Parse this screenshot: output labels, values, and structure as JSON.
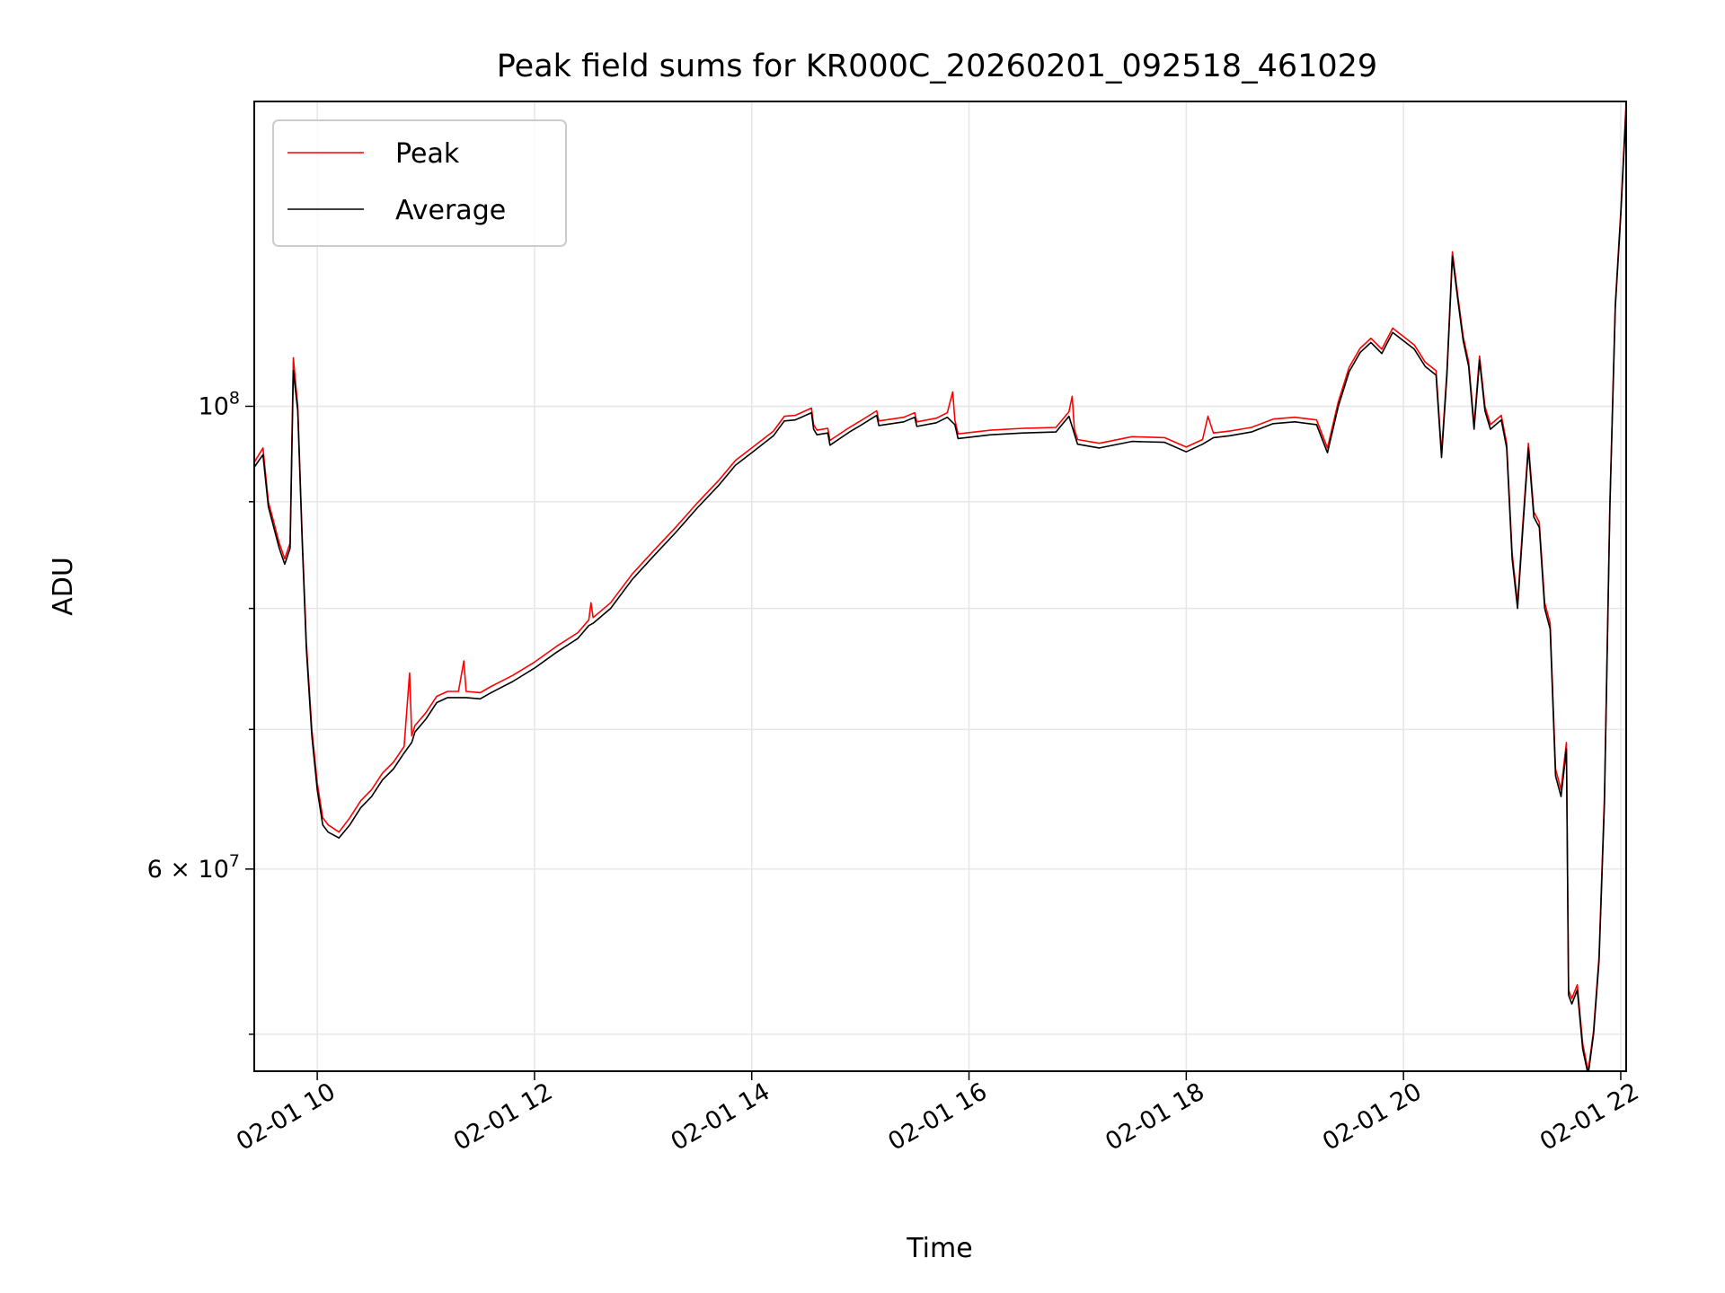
{
  "chart_data": {
    "type": "line",
    "title": "Peak field sums for KR000C_20260201_092518_461029",
    "xlabel": "Time",
    "ylabel": "ADU",
    "x_unit": "hours (clock time on 2026-02-01)",
    "xlim": [
      9.42,
      22.05
    ],
    "ylim": [
      48000000,
      140000000
    ],
    "yscale": "log",
    "grid": true,
    "legend_position": "upper left",
    "x_ticks": [
      {
        "value": 10,
        "label": "02-01 10"
      },
      {
        "value": 12,
        "label": "02-01 12"
      },
      {
        "value": 14,
        "label": "02-01 14"
      },
      {
        "value": 16,
        "label": "02-01 16"
      },
      {
        "value": 18,
        "label": "02-01 18"
      },
      {
        "value": 20,
        "label": "02-01 20"
      },
      {
        "value": 22,
        "label": "02-01 22"
      }
    ],
    "y_major_ticks": [
      {
        "value": 60000000,
        "base": "6 × 10",
        "exp": "7"
      },
      {
        "value": 100000000,
        "base": "10",
        "exp": "8"
      }
    ],
    "y_minor_ticks": [
      50000000,
      70000000,
      80000000,
      90000000
    ],
    "series": [
      {
        "name": "Peak",
        "color": "#ff0000",
        "points": [
          [
            9.42,
            94000000
          ],
          [
            9.5,
            95500000
          ],
          [
            9.55,
            90000000
          ],
          [
            9.65,
            86000000
          ],
          [
            9.7,
            84500000
          ],
          [
            9.75,
            86000000
          ],
          [
            9.78,
            105500000
          ],
          [
            9.82,
            100000000
          ],
          [
            9.86,
            87000000
          ],
          [
            9.9,
            77000000
          ],
          [
            9.95,
            70000000
          ],
          [
            10.0,
            66000000
          ],
          [
            10.05,
            63500000
          ],
          [
            10.1,
            63000000
          ],
          [
            10.2,
            62500000
          ],
          [
            10.3,
            63500000
          ],
          [
            10.4,
            64700000
          ],
          [
            10.5,
            65500000
          ],
          [
            10.6,
            66700000
          ],
          [
            10.7,
            67500000
          ],
          [
            10.8,
            68700000
          ],
          [
            10.85,
            74500000
          ],
          [
            10.87,
            69500000
          ],
          [
            10.9,
            70300000
          ],
          [
            11.0,
            71300000
          ],
          [
            11.1,
            72600000
          ],
          [
            11.2,
            73000000
          ],
          [
            11.3,
            73000000
          ],
          [
            11.35,
            75500000
          ],
          [
            11.37,
            73000000
          ],
          [
            11.5,
            72900000
          ],
          [
            11.6,
            73400000
          ],
          [
            11.8,
            74300000
          ],
          [
            12.0,
            75400000
          ],
          [
            12.2,
            76700000
          ],
          [
            12.4,
            77900000
          ],
          [
            12.5,
            79000000
          ],
          [
            12.52,
            80500000
          ],
          [
            12.54,
            79200000
          ],
          [
            12.7,
            80500000
          ],
          [
            12.9,
            83100000
          ],
          [
            13.1,
            85300000
          ],
          [
            13.3,
            87500000
          ],
          [
            13.5,
            89900000
          ],
          [
            13.7,
            92200000
          ],
          [
            13.85,
            94200000
          ],
          [
            14.0,
            95500000
          ],
          [
            14.2,
            97300000
          ],
          [
            14.3,
            98900000
          ],
          [
            14.4,
            99000000
          ],
          [
            14.55,
            99800000
          ],
          [
            14.57,
            98000000
          ],
          [
            14.6,
            97400000
          ],
          [
            14.7,
            97600000
          ],
          [
            14.72,
            96300000
          ],
          [
            14.9,
            97700000
          ],
          [
            15.0,
            98400000
          ],
          [
            15.15,
            99500000
          ],
          [
            15.17,
            98400000
          ],
          [
            15.4,
            98800000
          ],
          [
            15.5,
            99300000
          ],
          [
            15.52,
            98300000
          ],
          [
            15.7,
            98700000
          ],
          [
            15.8,
            99300000
          ],
          [
            15.85,
            101600000
          ],
          [
            15.87,
            98500000
          ],
          [
            15.9,
            97000000
          ],
          [
            16.2,
            97400000
          ],
          [
            16.5,
            97600000
          ],
          [
            16.8,
            97700000
          ],
          [
            16.92,
            99400000
          ],
          [
            16.95,
            101100000
          ],
          [
            16.97,
            97500000
          ],
          [
            17.0,
            96400000
          ],
          [
            17.2,
            96000000
          ],
          [
            17.5,
            96700000
          ],
          [
            17.8,
            96600000
          ],
          [
            18.0,
            95600000
          ],
          [
            18.15,
            96400000
          ],
          [
            18.2,
            98900000
          ],
          [
            18.25,
            97100000
          ],
          [
            18.4,
            97300000
          ],
          [
            18.6,
            97700000
          ],
          [
            18.8,
            98600000
          ],
          [
            19.0,
            98800000
          ],
          [
            19.2,
            98500000
          ],
          [
            19.3,
            95500000
          ],
          [
            19.4,
            100500000
          ],
          [
            19.5,
            104400000
          ],
          [
            19.6,
            106600000
          ],
          [
            19.7,
            107800000
          ],
          [
            19.8,
            106500000
          ],
          [
            19.9,
            109000000
          ],
          [
            20.0,
            108000000
          ],
          [
            20.1,
            107000000
          ],
          [
            20.2,
            105000000
          ],
          [
            20.3,
            104000000
          ],
          [
            20.35,
            95000000
          ],
          [
            20.4,
            104000000
          ],
          [
            20.45,
            118600000
          ],
          [
            20.5,
            113000000
          ],
          [
            20.55,
            108000000
          ],
          [
            20.6,
            105000000
          ],
          [
            20.65,
            98000000
          ],
          [
            20.7,
            105700000
          ],
          [
            20.75,
            100000000
          ],
          [
            20.8,
            98000000
          ],
          [
            20.9,
            99000000
          ],
          [
            20.95,
            96000000
          ],
          [
            21.0,
            85000000
          ],
          [
            21.05,
            80500000
          ],
          [
            21.1,
            88000000
          ],
          [
            21.15,
            96000000
          ],
          [
            21.2,
            89000000
          ],
          [
            21.25,
            88000000
          ],
          [
            21.3,
            80500000
          ],
          [
            21.35,
            78700000
          ],
          [
            21.4,
            67000000
          ],
          [
            21.45,
            65500000
          ],
          [
            21.5,
            69000000
          ],
          [
            21.52,
            52500000
          ],
          [
            21.55,
            52000000
          ],
          [
            21.6,
            52800000
          ],
          [
            21.65,
            49500000
          ],
          [
            21.7,
            48000000
          ],
          [
            21.75,
            50200000
          ],
          [
            21.8,
            54500000
          ],
          [
            21.85,
            65000000
          ],
          [
            21.9,
            90000000
          ],
          [
            21.95,
            112000000
          ],
          [
            22.0,
            124000000
          ],
          [
            22.05,
            140000000
          ]
        ]
      },
      {
        "name": "Average",
        "color": "#000000",
        "points": [
          [
            9.42,
            93500000
          ],
          [
            9.5,
            94800000
          ],
          [
            9.55,
            89500000
          ],
          [
            9.65,
            85500000
          ],
          [
            9.7,
            84000000
          ],
          [
            9.75,
            85500000
          ],
          [
            9.78,
            104000000
          ],
          [
            9.82,
            99500000
          ],
          [
            9.86,
            86500000
          ],
          [
            9.9,
            76500000
          ],
          [
            9.95,
            69500000
          ],
          [
            10.0,
            65500000
          ],
          [
            10.05,
            63000000
          ],
          [
            10.1,
            62500000
          ],
          [
            10.2,
            62100000
          ],
          [
            10.3,
            63000000
          ],
          [
            10.4,
            64200000
          ],
          [
            10.5,
            65000000
          ],
          [
            10.6,
            66200000
          ],
          [
            10.7,
            67000000
          ],
          [
            10.8,
            68200000
          ],
          [
            10.87,
            69000000
          ],
          [
            10.9,
            69800000
          ],
          [
            11.0,
            70800000
          ],
          [
            11.1,
            72100000
          ],
          [
            11.2,
            72500000
          ],
          [
            11.3,
            72500000
          ],
          [
            11.37,
            72500000
          ],
          [
            11.5,
            72400000
          ],
          [
            11.6,
            72900000
          ],
          [
            11.8,
            73800000
          ],
          [
            12.0,
            74900000
          ],
          [
            12.2,
            76200000
          ],
          [
            12.4,
            77400000
          ],
          [
            12.5,
            78500000
          ],
          [
            12.54,
            78700000
          ],
          [
            12.7,
            80000000
          ],
          [
            12.9,
            82600000
          ],
          [
            13.1,
            84800000
          ],
          [
            13.3,
            87000000
          ],
          [
            13.5,
            89400000
          ],
          [
            13.7,
            91700000
          ],
          [
            13.85,
            93700000
          ],
          [
            14.0,
            95000000
          ],
          [
            14.2,
            96800000
          ],
          [
            14.3,
            98400000
          ],
          [
            14.4,
            98500000
          ],
          [
            14.55,
            99300000
          ],
          [
            14.57,
            97500000
          ],
          [
            14.6,
            96900000
          ],
          [
            14.7,
            97100000
          ],
          [
            14.72,
            95800000
          ],
          [
            14.9,
            97200000
          ],
          [
            15.0,
            97900000
          ],
          [
            15.15,
            99000000
          ],
          [
            15.17,
            97900000
          ],
          [
            15.4,
            98300000
          ],
          [
            15.5,
            98800000
          ],
          [
            15.52,
            97800000
          ],
          [
            15.7,
            98200000
          ],
          [
            15.8,
            98800000
          ],
          [
            15.87,
            98000000
          ],
          [
            15.9,
            96500000
          ],
          [
            16.2,
            96900000
          ],
          [
            16.5,
            97100000
          ],
          [
            16.8,
            97200000
          ],
          [
            16.92,
            98900000
          ],
          [
            16.97,
            97000000
          ],
          [
            17.0,
            95900000
          ],
          [
            17.2,
            95500000
          ],
          [
            17.5,
            96200000
          ],
          [
            17.8,
            96100000
          ],
          [
            18.0,
            95100000
          ],
          [
            18.15,
            95900000
          ],
          [
            18.25,
            96600000
          ],
          [
            18.4,
            96800000
          ],
          [
            18.6,
            97200000
          ],
          [
            18.8,
            98100000
          ],
          [
            19.0,
            98300000
          ],
          [
            19.2,
            98000000
          ],
          [
            19.3,
            95000000
          ],
          [
            19.4,
            100000000
          ],
          [
            19.5,
            103900000
          ],
          [
            19.6,
            106100000
          ],
          [
            19.7,
            107300000
          ],
          [
            19.8,
            106000000
          ],
          [
            19.9,
            108500000
          ],
          [
            20.0,
            107500000
          ],
          [
            20.1,
            106500000
          ],
          [
            20.2,
            104500000
          ],
          [
            20.3,
            103500000
          ],
          [
            20.35,
            94500000
          ],
          [
            20.4,
            103500000
          ],
          [
            20.45,
            118000000
          ],
          [
            20.5,
            112500000
          ],
          [
            20.55,
            107500000
          ],
          [
            20.6,
            104500000
          ],
          [
            20.65,
            97500000
          ],
          [
            20.7,
            105200000
          ],
          [
            20.75,
            99500000
          ],
          [
            20.8,
            97500000
          ],
          [
            20.9,
            98500000
          ],
          [
            20.95,
            95500000
          ],
          [
            21.0,
            84500000
          ],
          [
            21.05,
            80000000
          ],
          [
            21.1,
            87500000
          ],
          [
            21.15,
            95500000
          ],
          [
            21.2,
            88500000
          ],
          [
            21.25,
            87500000
          ],
          [
            21.3,
            80000000
          ],
          [
            21.35,
            78200000
          ],
          [
            21.4,
            66500000
          ],
          [
            21.45,
            65000000
          ],
          [
            21.5,
            68500000
          ],
          [
            21.52,
            52200000
          ],
          [
            21.55,
            51700000
          ],
          [
            21.6,
            52500000
          ],
          [
            21.65,
            49200000
          ],
          [
            21.7,
            47800000
          ],
          [
            21.75,
            50000000
          ],
          [
            21.8,
            54200000
          ],
          [
            21.85,
            64500000
          ],
          [
            21.9,
            89500000
          ],
          [
            21.95,
            111500000
          ],
          [
            22.0,
            123500000
          ],
          [
            22.05,
            139000000
          ]
        ]
      }
    ]
  }
}
